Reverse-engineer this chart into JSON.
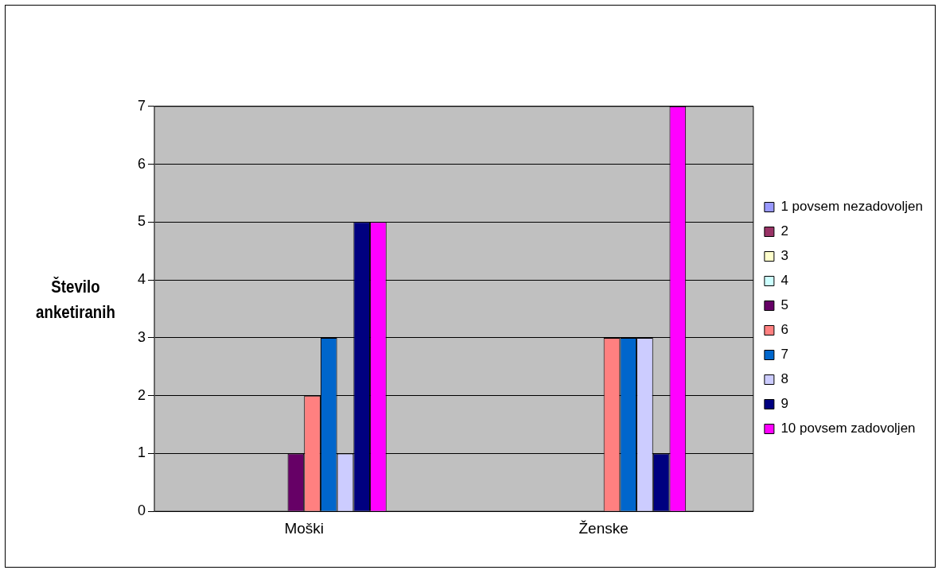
{
  "chart_data": {
    "type": "bar",
    "ylabel": "Število anketiranih",
    "categories": [
      "Moški",
      "Ženske"
    ],
    "series": [
      {
        "name": "1 povsem nezadovoljen",
        "color": "#9999ff",
        "values": [
          0,
          0
        ]
      },
      {
        "name": "2",
        "color": "#993366",
        "values": [
          0,
          0
        ]
      },
      {
        "name": "3",
        "color": "#ffffcc",
        "values": [
          0,
          0
        ]
      },
      {
        "name": "4",
        "color": "#ccffff",
        "values": [
          0,
          0
        ]
      },
      {
        "name": "5",
        "color": "#660066",
        "values": [
          1,
          0
        ]
      },
      {
        "name": "6",
        "color": "#ff8080",
        "values": [
          2,
          3
        ]
      },
      {
        "name": "7",
        "color": "#0066cc",
        "values": [
          3,
          3
        ]
      },
      {
        "name": "8",
        "color": "#ccccff",
        "values": [
          1,
          3
        ]
      },
      {
        "name": "9",
        "color": "#000080",
        "values": [
          5,
          1
        ]
      },
      {
        "name": "10 povsem zadovoljen",
        "color": "#ff00ff",
        "values": [
          5,
          7
        ]
      }
    ],
    "ylim": [
      0,
      7
    ],
    "yticks": [
      0,
      1,
      2,
      3,
      4,
      5,
      6,
      7
    ],
    "grid": "y",
    "legend": "right"
  }
}
